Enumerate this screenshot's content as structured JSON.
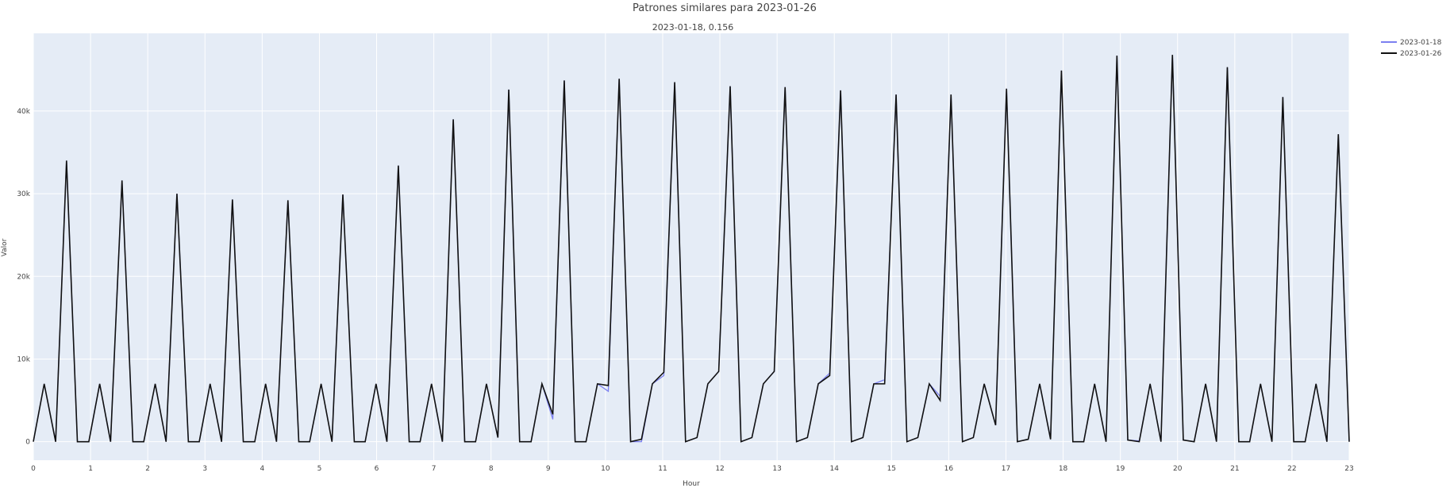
{
  "chart_data": {
    "type": "line",
    "title": "Patrones similares para 2023-01-26",
    "subtitle": "2023-01-18, 0.156",
    "x_label": "Hour",
    "y_label": "Valor",
    "xlim": [
      0,
      23
    ],
    "xticks": [
      0,
      1,
      2,
      3,
      4,
      5,
      6,
      7,
      8,
      9,
      10,
      11,
      12,
      13,
      14,
      15,
      16,
      17,
      18,
      19,
      20,
      21,
      22,
      23
    ],
    "ylim": [
      -2240,
      49400
    ],
    "yticks": [
      0,
      {
        "value": 10000,
        "label": "10k"
      },
      {
        "value": 20000,
        "label": "20k"
      },
      {
        "value": 30000,
        "label": "30k"
      },
      {
        "value": 40000,
        "label": "40k"
      }
    ],
    "grid": true,
    "legend": "right",
    "x": [
      0,
      0.19,
      0.39,
      0.58,
      0.77,
      0.97,
      1.16,
      1.35,
      1.55,
      1.74,
      1.93,
      2.13,
      2.32,
      2.51,
      2.71,
      2.9,
      3.09,
      3.29,
      3.48,
      3.67,
      3.87,
      4.06,
      4.25,
      4.45,
      4.64,
      4.83,
      5.03,
      5.22,
      5.41,
      5.61,
      5.8,
      5.99,
      6.18,
      6.38,
      6.57,
      6.76,
      6.96,
      7.15,
      7.34,
      7.54,
      7.73,
      7.92,
      8.12,
      8.31,
      8.5,
      8.7,
      8.89,
      9.08,
      9.28,
      9.47,
      9.66,
      9.86,
      10.05,
      10.24,
      10.44,
      10.63,
      10.82,
      11.02,
      11.21,
      11.4,
      11.6,
      11.79,
      11.98,
      12.18,
      12.37,
      12.56,
      12.76,
      12.95,
      13.14,
      13.34,
      13.53,
      13.72,
      13.92,
      14.11,
      14.3,
      14.5,
      14.69,
      14.88,
      15.08,
      15.27,
      15.46,
      15.66,
      15.85,
      16.04,
      16.24,
      16.43,
      16.62,
      16.82,
      17.01,
      17.2,
      17.39,
      17.59,
      17.78,
      17.97,
      18.17,
      18.36,
      18.55,
      18.75,
      18.94,
      19.13,
      19.33,
      19.52,
      19.71,
      19.91,
      20.1,
      20.29,
      20.49,
      20.68,
      20.87,
      21.07,
      21.26,
      21.45,
      21.65,
      21.84,
      22.03,
      22.23,
      22.42,
      22.61,
      22.81,
      23
    ],
    "series": [
      {
        "name": "2023-01-18",
        "color": "#7b7ff0",
        "values": [
          0,
          7000,
          0,
          34000,
          0,
          0,
          7000,
          0,
          31600,
          0,
          0,
          7000,
          0,
          30000,
          0,
          0,
          7000,
          0,
          29300,
          0,
          0,
          7000,
          0,
          29200,
          0,
          0,
          7000,
          0,
          29900,
          0,
          0,
          7000,
          0,
          33400,
          0,
          0,
          7000,
          0,
          39000,
          0,
          0,
          7000,
          500,
          42600,
          0,
          0,
          7000,
          2700,
          43700,
          0,
          0,
          7000,
          6100,
          43900,
          0,
          0,
          7000,
          8000,
          43500,
          0,
          500,
          7000,
          8500,
          43000,
          0,
          500,
          7000,
          8500,
          42900,
          0,
          500,
          7000,
          8300,
          42500,
          0,
          500,
          7000,
          7500,
          42000,
          0,
          500,
          7000,
          5500,
          42000,
          0,
          500,
          7000,
          2000,
          42700,
          0,
          300,
          7000,
          300,
          44900,
          0,
          0,
          7000,
          0,
          46700,
          200,
          100,
          7000,
          0,
          46800,
          200,
          0,
          7000,
          0,
          45300,
          0,
          0,
          7000,
          0,
          41700,
          0,
          0,
          7000,
          0,
          37200,
          0
        ]
      },
      {
        "name": "2023-01-26",
        "color": "#111111",
        "values": [
          0,
          7000,
          0,
          34000,
          0,
          0,
          7000,
          0,
          31600,
          0,
          0,
          7000,
          0,
          30000,
          0,
          0,
          7000,
          0,
          29300,
          0,
          0,
          7000,
          0,
          29200,
          0,
          0,
          7000,
          0,
          29900,
          0,
          0,
          7000,
          0,
          33400,
          0,
          0,
          7000,
          0,
          39000,
          0,
          0,
          7000,
          500,
          42600,
          0,
          0,
          7000,
          3300,
          43700,
          0,
          0,
          7000,
          6800,
          43900,
          0,
          300,
          7000,
          8400,
          43500,
          0,
          500,
          7000,
          8500,
          43000,
          0,
          500,
          7000,
          8500,
          42900,
          0,
          500,
          7000,
          8000,
          42500,
          0,
          500,
          7000,
          7000,
          42000,
          0,
          500,
          7000,
          5000,
          42000,
          0,
          500,
          7000,
          2000,
          42700,
          0,
          300,
          7000,
          300,
          44900,
          0,
          0,
          7000,
          0,
          46700,
          200,
          0,
          7000,
          0,
          46800,
          200,
          0,
          7000,
          0,
          45300,
          0,
          0,
          7000,
          0,
          41700,
          0,
          0,
          7000,
          0,
          37200,
          0
        ]
      }
    ]
  }
}
